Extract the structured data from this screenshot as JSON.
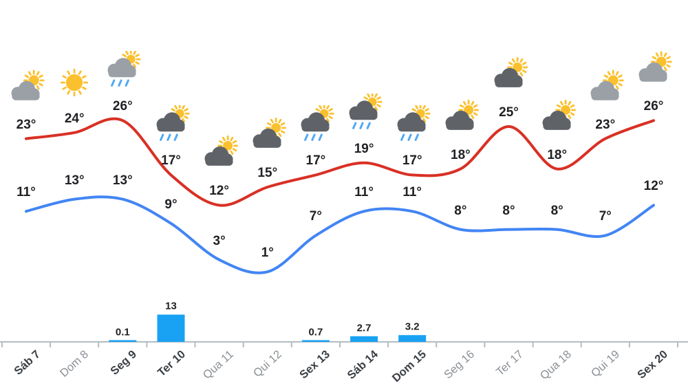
{
  "palette": {
    "high": "#d93025",
    "low": "#4285f4",
    "bar": "#19a2f3",
    "axis": "#b3bcc4",
    "sun": "#fbc02d",
    "cloud_light": "#9aa0a6",
    "cloud_dark": "#5f6368",
    "rain": "#4fa9f5",
    "text": "#202124"
  },
  "chart_data": {
    "type": "line",
    "title": "",
    "categories": [
      "Sáb 7",
      "Dom 8",
      "Seg 9",
      "Ter 10",
      "Qua 11",
      "Qui 12",
      "Sex 13",
      "Sáb 14",
      "Dom 15",
      "Seg 16",
      "Ter 17",
      "Qua 18",
      "Qui 19",
      "Sex 20"
    ],
    "series": [
      {
        "name": "high-temperature",
        "unit": "°",
        "color": "#d93025",
        "values": [
          23,
          24,
          26,
          17,
          12,
          15,
          17,
          19,
          17,
          18,
          25,
          18,
          23,
          26
        ]
      },
      {
        "name": "low-temperature",
        "unit": "°",
        "color": "#4285f4",
        "values": [
          11,
          13,
          13,
          9,
          3,
          1,
          7,
          11,
          11,
          8,
          8,
          8,
          7,
          12
        ]
      },
      {
        "name": "precipitation",
        "type": "bar",
        "color": "#19a2f3",
        "values": [
          null,
          null,
          0.1,
          13,
          null,
          null,
          0.7,
          2.7,
          3.2,
          null,
          null,
          null,
          null,
          null
        ]
      }
    ],
    "ylim_temp": [
      0,
      30
    ],
    "grid": false,
    "legend": "none",
    "days": [
      {
        "label": "Sáb 7",
        "high": 23,
        "low": 11,
        "icon": "cloud-sun-light",
        "precip": null,
        "muted": false
      },
      {
        "label": "Dom 8",
        "high": 24,
        "low": 13,
        "icon": "sunny",
        "precip": null,
        "muted": true
      },
      {
        "label": "Seg 9",
        "high": 26,
        "low": 13,
        "icon": "rain-sun-light",
        "precip": 0.1,
        "muted": false
      },
      {
        "label": "Ter 10",
        "high": 17,
        "low": 9,
        "icon": "rain-sun-dark",
        "precip": 13,
        "muted": false
      },
      {
        "label": "Qua 11",
        "high": 12,
        "low": 3,
        "icon": "cloud-sun-dark",
        "precip": null,
        "muted": true
      },
      {
        "label": "Qui 12",
        "high": 15,
        "low": 1,
        "icon": "cloud-sun-dark",
        "precip": null,
        "muted": true
      },
      {
        "label": "Sex 13",
        "high": 17,
        "low": 7,
        "icon": "rain-sun-dark",
        "precip": 0.7,
        "muted": false
      },
      {
        "label": "Sáb 14",
        "high": 19,
        "low": 11,
        "icon": "rain-sun-dark",
        "precip": 2.7,
        "muted": false
      },
      {
        "label": "Dom 15",
        "high": 17,
        "low": 11,
        "icon": "rain-sun-dark",
        "precip": 3.2,
        "muted": false
      },
      {
        "label": "Seg 16",
        "high": 18,
        "low": 8,
        "icon": "cloud-sun-dark",
        "precip": null,
        "muted": true
      },
      {
        "label": "Ter 17",
        "high": 25,
        "low": 8,
        "icon": "cloud-sun-dark",
        "precip": null,
        "muted": true
      },
      {
        "label": "Qua 18",
        "high": 18,
        "low": 8,
        "icon": "cloud-sun-dark",
        "precip": null,
        "muted": true
      },
      {
        "label": "Qui 19",
        "high": 23,
        "low": 7,
        "icon": "cloud-sun-light",
        "precip": null,
        "muted": true
      },
      {
        "label": "Sex 20",
        "high": 26,
        "low": 12,
        "icon": "cloud-sun-light",
        "precip": null,
        "muted": false
      }
    ]
  }
}
